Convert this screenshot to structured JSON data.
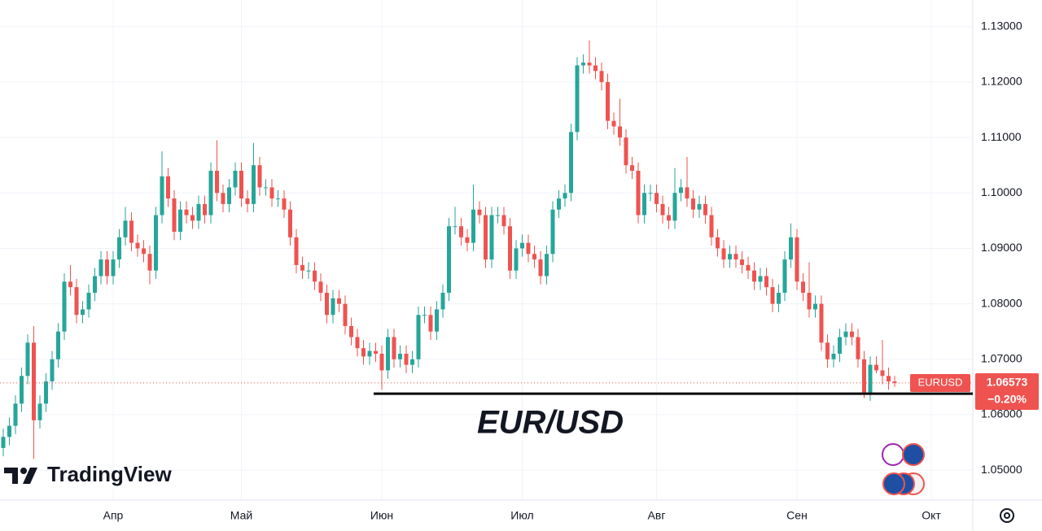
{
  "chart_data": {
    "type": "candlestick",
    "title": "EUR/USD",
    "brand": "TradingView",
    "symbol": "EURUSD",
    "last_price": {
      "value": 1.06573,
      "label": "1.06573"
    },
    "change": "−0.20%",
    "up_color": "#26a69a",
    "down_color": "#ef5350",
    "grid": true,
    "support_line": 1.0638,
    "categories": [
      null,
      null,
      null,
      null,
      null,
      null,
      null,
      null,
      null,
      null,
      null,
      null,
      null,
      null,
      null,
      null,
      null,
      null,
      "Апр",
      null,
      null,
      null,
      null,
      null,
      null,
      null,
      null,
      null,
      null,
      null,
      null,
      null,
      null,
      null,
      null,
      null,
      null,
      null,
      null,
      "Май",
      null,
      null,
      null,
      null,
      null,
      null,
      null,
      null,
      null,
      null,
      null,
      null,
      null,
      null,
      null,
      null,
      null,
      null,
      null,
      null,
      null,
      null,
      "Июн",
      null,
      null,
      null,
      null,
      null,
      null,
      null,
      null,
      null,
      null,
      null,
      null,
      null,
      null,
      null,
      null,
      null,
      null,
      null,
      null,
      null,
      null,
      "Июл",
      null,
      null,
      null,
      null,
      null,
      null,
      null,
      null,
      null,
      null,
      null,
      null,
      null,
      null,
      null,
      null,
      null,
      null,
      null,
      null,
      null,
      "Авг",
      null,
      null,
      null,
      null,
      null,
      null,
      null,
      null,
      null,
      null,
      null,
      null,
      null,
      null,
      null,
      null,
      null,
      null,
      null,
      null,
      null,
      null,
      "Сен",
      null,
      null,
      null,
      null,
      null,
      null,
      null,
      null,
      null,
      null,
      null,
      null,
      null,
      null,
      null,
      null,
      null,
      null,
      null,
      null,
      null,
      "Окт"
    ],
    "open": [
      1.054,
      1.056,
      1.058,
      1.062,
      1.067,
      1.073,
      1.059,
      1.062,
      1.066,
      1.07,
      1.075,
      1.084,
      1.083,
      1.078,
      1.079,
      1.082,
      1.085,
      1.088,
      1.085,
      1.088,
      1.092,
      1.095,
      1.091,
      1.09,
      1.089,
      1.086,
      1.096,
      1.103,
      1.099,
      1.093,
      1.097,
      1.096,
      1.095,
      1.098,
      1.096,
      1.104,
      1.1,
      1.098,
      1.101,
      1.104,
      1.099,
      1.098,
      1.105,
      1.101,
      1.101,
      1.099,
      1.099,
      1.097,
      1.092,
      1.087,
      1.086,
      1.086,
      1.084,
      1.082,
      1.078,
      1.081,
      1.08,
      1.076,
      1.074,
      1.072,
      1.0705,
      1.0715,
      1.071,
      1.068,
      1.074,
      1.07,
      1.071,
      1.069,
      1.07,
      1.078,
      1.078,
      1.075,
      1.079,
      1.082,
      1.094,
      1.094,
      1.092,
      1.091,
      1.097,
      1.096,
      1.088,
      1.096,
      1.096,
      1.094,
      1.086,
      1.09,
      1.091,
      1.089,
      1.088,
      1.085,
      1.089,
      1.097,
      1.099,
      1.1,
      1.111,
      1.123,
      1.1235,
      1.123,
      1.122,
      1.12,
      1.113,
      1.112,
      1.11,
      1.105,
      1.104,
      1.096,
      1.1,
      1.1,
      1.098,
      1.096,
      1.095,
      1.1,
      1.101,
      1.099,
      1.097,
      1.098,
      1.096,
      1.092,
      1.09,
      1.088,
      1.089,
      1.088,
      1.087,
      1.086,
      1.084,
      1.085,
      1.083,
      1.08,
      1.082,
      1.088,
      1.092,
      1.084,
      1.082,
      1.079,
      1.08,
      1.073,
      1.07,
      1.071,
      1.074,
      1.075,
      1.074,
      1.07,
      1.064,
      1.069,
      1.068,
      1.067,
      1.066,
      null,
      null,
      null,
      null,
      null,
      null
    ],
    "high": [
      1.0575,
      1.0595,
      1.0635,
      1.0685,
      1.0745,
      1.076,
      1.0635,
      1.0675,
      1.0715,
      1.0765,
      1.0855,
      1.087,
      1.0845,
      1.0805,
      1.0835,
      1.0865,
      1.0895,
      1.0895,
      1.0895,
      1.0935,
      1.0975,
      1.0965,
      1.0925,
      1.0915,
      1.0905,
      1.0975,
      1.1075,
      1.1045,
      1.1005,
      1.0985,
      1.0985,
      1.0975,
      1.0995,
      1.0995,
      1.1055,
      1.1095,
      1.1015,
      1.1025,
      1.1055,
      1.1055,
      1.1005,
      1.109,
      1.1065,
      1.1025,
      1.1025,
      1.1005,
      1.1005,
      1.0985,
      1.0935,
      1.0885,
      1.0875,
      1.0875,
      1.0855,
      1.0835,
      1.0825,
      1.0825,
      1.0815,
      1.0775,
      1.0755,
      1.0735,
      1.073,
      1.073,
      1.0725,
      1.0755,
      1.0755,
      1.0725,
      1.0725,
      1.0715,
      1.0795,
      1.0795,
      1.0795,
      1.0805,
      1.0835,
      1.0955,
      1.0975,
      1.0955,
      1.0935,
      1.1015,
      1.0985,
      1.0975,
      1.0975,
      1.0975,
      1.0975,
      1.0955,
      1.0915,
      1.0925,
      1.0925,
      1.0905,
      1.0895,
      1.0905,
      1.0985,
      1.1005,
      1.1015,
      1.1125,
      1.1245,
      1.125,
      1.1275,
      1.1245,
      1.1235,
      1.1215,
      1.1145,
      1.117,
      1.1115,
      1.1065,
      1.1055,
      1.1015,
      1.1015,
      1.1015,
      1.0995,
      1.0975,
      1.1045,
      1.1025,
      1.1065,
      1.1005,
      1.0995,
      1.0995,
      1.0975,
      1.0935,
      1.0915,
      1.0905,
      1.0905,
      1.0895,
      1.0885,
      1.0875,
      1.0865,
      1.0865,
      1.0845,
      1.0835,
      1.0895,
      1.0945,
      1.0935,
      1.0855,
      1.0875,
      1.0815,
      1.0815,
      1.0745,
      1.0725,
      1.0755,
      1.0765,
      1.0765,
      1.0755,
      1.0715,
      1.0705,
      1.0705,
      1.0735,
      1.0685,
      1.067,
      null,
      null,
      null,
      null,
      null,
      null
    ],
    "low": [
      1.0525,
      1.0545,
      1.0565,
      1.0605,
      1.0655,
      1.052,
      1.0575,
      1.0605,
      1.0645,
      1.0685,
      1.0735,
      1.0815,
      1.0765,
      1.0765,
      1.0775,
      1.0805,
      1.0835,
      1.0835,
      1.0835,
      1.0865,
      1.0905,
      1.0895,
      1.0885,
      1.0875,
      1.0835,
      1.0845,
      1.0945,
      1.0975,
      1.0915,
      1.0915,
      1.0945,
      1.0935,
      1.0935,
      1.0945,
      1.0945,
      1.0985,
      1.0965,
      1.0965,
      1.0995,
      1.0975,
      1.0965,
      1.0965,
      1.0995,
      1.0995,
      1.0975,
      1.0975,
      1.0955,
      1.0905,
      1.0855,
      1.0845,
      1.0845,
      1.0825,
      1.0805,
      1.0765,
      1.0765,
      1.0785,
      1.0745,
      1.0725,
      1.0705,
      1.069,
      1.069,
      1.0695,
      1.0645,
      1.0665,
      1.0685,
      1.0685,
      1.0675,
      1.0675,
      1.0685,
      1.0765,
      1.0735,
      1.0735,
      1.0775,
      1.0805,
      1.0925,
      1.0905,
      1.0895,
      1.0895,
      1.0945,
      1.0865,
      1.0865,
      1.0945,
      1.0925,
      1.0845,
      1.0845,
      1.0885,
      1.0875,
      1.0865,
      1.0835,
      1.0835,
      1.0875,
      1.0955,
      1.0975,
      1.0985,
      1.1095,
      1.1215,
      1.1215,
      1.1205,
      1.1185,
      1.1115,
      1.1105,
      1.1085,
      1.1035,
      1.1025,
      1.0945,
      1.0945,
      1.0985,
      1.0965,
      1.0945,
      1.0935,
      1.0935,
      1.0985,
      1.0975,
      1.0955,
      1.0955,
      1.0945,
      1.0905,
      1.0885,
      1.0865,
      1.0865,
      1.0865,
      1.0855,
      1.0845,
      1.0825,
      1.0825,
      1.0815,
      1.0785,
      1.0785,
      1.0805,
      1.0865,
      1.0825,
      1.0805,
      1.0775,
      1.0775,
      1.0715,
      1.0685,
      1.0685,
      1.0695,
      1.0725,
      1.0725,
      1.0685,
      1.063,
      1.0625,
      1.0675,
      1.0655,
      1.0645,
      1.065,
      null,
      null,
      null,
      null,
      null,
      null
    ],
    "close": [
      1.056,
      1.058,
      1.062,
      1.067,
      1.073,
      1.059,
      1.062,
      1.066,
      1.07,
      1.075,
      1.084,
      1.083,
      1.078,
      1.079,
      1.082,
      1.085,
      1.088,
      1.085,
      1.088,
      1.092,
      1.095,
      1.091,
      1.09,
      1.089,
      1.086,
      1.096,
      1.103,
      1.099,
      1.093,
      1.097,
      1.096,
      1.095,
      1.098,
      1.096,
      1.104,
      1.1,
      1.098,
      1.101,
      1.104,
      1.099,
      1.098,
      1.105,
      1.101,
      1.101,
      1.099,
      1.099,
      1.097,
      1.092,
      1.087,
      1.086,
      1.086,
      1.084,
      1.082,
      1.078,
      1.081,
      1.08,
      1.076,
      1.074,
      1.072,
      1.0705,
      1.0715,
      1.071,
      1.068,
      1.074,
      1.07,
      1.071,
      1.069,
      1.07,
      1.078,
      1.078,
      1.075,
      1.079,
      1.082,
      1.094,
      1.094,
      1.092,
      1.091,
      1.097,
      1.096,
      1.088,
      1.096,
      1.096,
      1.094,
      1.086,
      1.09,
      1.091,
      1.089,
      1.088,
      1.085,
      1.089,
      1.097,
      1.099,
      1.1,
      1.111,
      1.123,
      1.1235,
      1.123,
      1.122,
      1.12,
      1.113,
      1.112,
      1.11,
      1.105,
      1.104,
      1.096,
      1.1,
      1.1,
      1.098,
      1.096,
      1.095,
      1.1,
      1.101,
      1.099,
      1.097,
      1.098,
      1.096,
      1.092,
      1.09,
      1.088,
      1.089,
      1.088,
      1.087,
      1.086,
      1.084,
      1.085,
      1.083,
      1.08,
      1.082,
      1.088,
      1.092,
      1.084,
      1.082,
      1.079,
      1.08,
      1.073,
      1.07,
      1.071,
      1.074,
      1.075,
      1.074,
      1.07,
      1.064,
      1.069,
      1.068,
      1.067,
      1.066,
      1.06573,
      null,
      null,
      null,
      null,
      null,
      null
    ],
    "ylim": [
      1.0446,
      1.1348
    ],
    "yticks": [
      {
        "value": 1.05,
        "label": "1.05000"
      },
      {
        "value": 1.06,
        "label": "1.06000"
      },
      {
        "value": 1.07,
        "label": "1.07000"
      },
      {
        "value": 1.08,
        "label": "1.08000"
      },
      {
        "value": 1.09,
        "label": "1.09000"
      },
      {
        "value": 1.1,
        "label": "1.10000"
      },
      {
        "value": 1.11,
        "label": "1.11000"
      },
      {
        "value": 1.12,
        "label": "1.12000"
      },
      {
        "value": 1.13,
        "label": "1.13000"
      }
    ]
  }
}
